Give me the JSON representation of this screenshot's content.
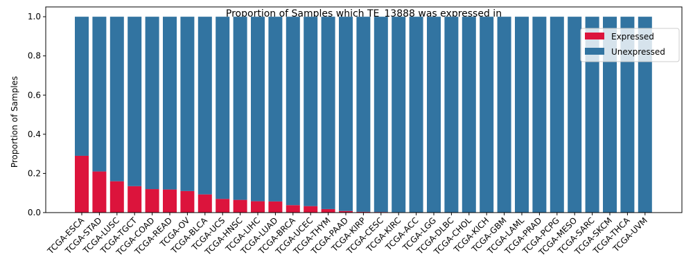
{
  "chart_data": {
    "type": "bar",
    "stacked": true,
    "title": "Proportion of Samples which TE_13888 was expressed in",
    "xlabel": "",
    "ylabel": "Proportion of Samples",
    "ylim": [
      0,
      1.05
    ],
    "yticks": [
      "0.0",
      "0.2",
      "0.4",
      "0.6",
      "0.8",
      "1.0"
    ],
    "ytick_values": [
      0,
      0.2,
      0.4,
      0.6,
      0.8,
      1.0
    ],
    "grid": false,
    "legend_position": "top-right",
    "categories": [
      "TCGA-ESCA",
      "TCGA-STAD",
      "TCGA-LUSC",
      "TCGA-TGCT",
      "TCGA-COAD",
      "TCGA-READ",
      "TCGA-OV",
      "TCGA-BLCA",
      "TCGA-UCS",
      "TCGA-HNSC",
      "TCGA-LIHC",
      "TCGA-LUAD",
      "TCGA-BRCA",
      "TCGA-UCEC",
      "TCGA-THYM",
      "TCGA-PAAD",
      "TCGA-KIRP",
      "TCGA-CESC",
      "TCGA-KIRC",
      "TCGA-ACC",
      "TCGA-LGG",
      "TCGA-DLBC",
      "TCGA-CHOL",
      "TCGA-KICH",
      "TCGA-GBM",
      "TCGA-LAML",
      "TCGA-PRAD",
      "TCGA-PCPG",
      "TCGA-MESO",
      "TCGA-SARC",
      "TCGA-SKCM",
      "TCGA-THCA",
      "TCGA-UVM"
    ],
    "series": [
      {
        "name": "Expressed",
        "color": "#dc143c",
        "values": [
          0.29,
          0.21,
          0.16,
          0.135,
          0.12,
          0.118,
          0.11,
          0.093,
          0.07,
          0.065,
          0.058,
          0.057,
          0.038,
          0.033,
          0.018,
          0.008,
          0.004,
          0.003,
          0.002,
          0,
          0,
          0,
          0,
          0,
          0,
          0,
          0,
          0,
          0,
          0,
          0,
          0,
          0
        ]
      },
      {
        "name": "Unexpressed",
        "color": "#3274a1",
        "values": [
          0.71,
          0.79,
          0.84,
          0.865,
          0.88,
          0.882,
          0.89,
          0.907,
          0.93,
          0.935,
          0.942,
          0.943,
          0.962,
          0.967,
          0.982,
          0.992,
          0.996,
          0.997,
          0.998,
          1,
          1,
          1,
          1,
          1,
          1,
          1,
          1,
          1,
          1,
          1,
          1,
          1,
          1
        ]
      }
    ]
  }
}
